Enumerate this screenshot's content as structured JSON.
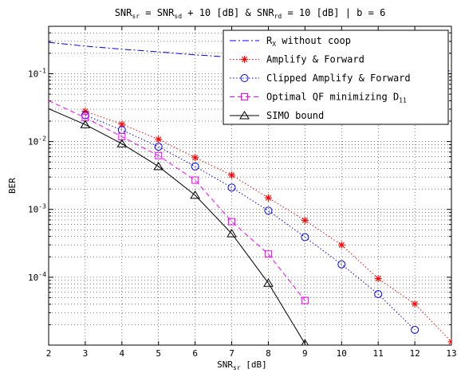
{
  "chart_data": {
    "type": "line",
    "title": {
      "parts": [
        {
          "t": "SNR",
          "sub": "sr"
        },
        {
          "t": " = SNR",
          "sub": "sd"
        },
        {
          "t": " + 10 [dB] & SNR",
          "sub": "rd"
        },
        {
          "t": " =  10  [dB] |  b = 6"
        }
      ]
    },
    "xlabel": {
      "text": "SNR",
      "sub": "sr",
      "suffix": " [dB]"
    },
    "ylabel": "BER",
    "xlim": [
      2,
      13
    ],
    "ylim": [
      1e-05,
      0.5
    ],
    "yscale": "log",
    "grid": true,
    "legend_position": "top-right",
    "x_ticks": [
      "2",
      "3",
      "4",
      "5",
      "6",
      "7",
      "8",
      "9",
      "10",
      "11",
      "12",
      "13"
    ],
    "y_ticks": [
      {
        "value": 0.1,
        "label": "10",
        "exp": "-1"
      },
      {
        "value": 0.01,
        "label": "10",
        "exp": "-2"
      },
      {
        "value": 0.001,
        "label": "10",
        "exp": "-3"
      },
      {
        "value": 0.0001,
        "label": "10",
        "exp": "-4"
      }
    ],
    "series": [
      {
        "name": "R",
        "name_sub": "X",
        "name_suffix": " without coop",
        "color": "#0000ff",
        "dash": "dashdot",
        "marker": "none",
        "x": [
          2,
          3,
          4,
          5,
          6,
          7,
          8,
          9,
          10,
          11,
          12,
          13
        ],
        "y": [
          0.29,
          0.255,
          0.23,
          0.21,
          0.19,
          0.175,
          0.16,
          0.148,
          0.137,
          0.127,
          0.118,
          0.11
        ]
      },
      {
        "name": "Amplify & Forward",
        "color": "#ff0000",
        "dash": "dotted",
        "marker": "star",
        "x": [
          3,
          4,
          5,
          6,
          7,
          8,
          9,
          10,
          11,
          12,
          13
        ],
        "y": [
          0.028,
          0.018,
          0.0108,
          0.0058,
          0.0032,
          0.00148,
          0.00069,
          0.0003,
          9.55e-05,
          4.05e-05,
          1.12e-05
        ]
      },
      {
        "name": "Clipped Amplify & Forward",
        "color": "#0000ff",
        "dash": "dotted",
        "marker": "circle",
        "x": [
          3,
          4,
          5,
          6,
          7,
          8,
          9,
          10,
          11,
          12
        ],
        "y": [
          0.0245,
          0.0148,
          0.0084,
          0.0043,
          0.0021,
          0.00096,
          0.00039,
          0.000155,
          5.65e-05,
          1.68e-05
        ]
      },
      {
        "name": "Optimal QF  minimizing  D",
        "name_sub": "11",
        "color": "#ff00ff",
        "dash": "dashed",
        "marker": "square",
        "x": [
          3,
          4,
          5,
          6,
          7,
          8,
          9
        ],
        "y": [
          0.0225,
          0.0118,
          0.0062,
          0.0027,
          0.00066,
          0.00022,
          4.55e-05
        ]
      },
      {
        "name": "SIMO bound",
        "color": "#000000",
        "dash": "solid",
        "marker": "triangle",
        "x": [
          3,
          4,
          5,
          6,
          7,
          8,
          9
        ],
        "y": [
          0.0178,
          0.0093,
          0.0043,
          0.00162,
          0.00044,
          8.2e-05,
          1.05e-05
        ]
      }
    ],
    "extra_segment_left": {
      "comment_free": true,
      "x": [
        2,
        3
      ],
      "series_index_y": [
        0.0305,
        0.0178,
        0.04,
        0.0225
      ]
    }
  }
}
